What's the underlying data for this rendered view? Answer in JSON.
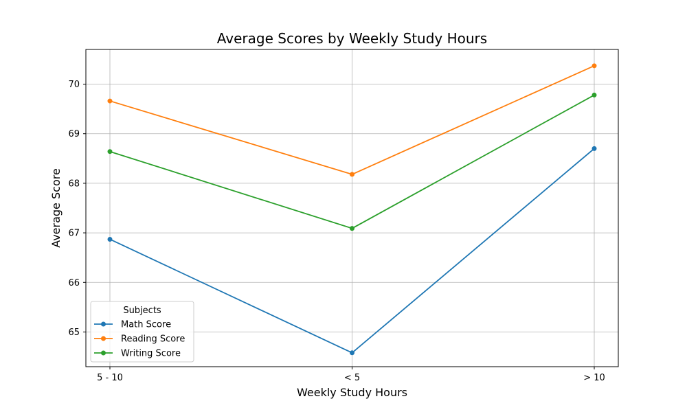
{
  "chart_data": {
    "type": "line",
    "title": "Average Scores by Weekly Study Hours",
    "xlabel": "Weekly Study Hours",
    "ylabel": "Average Score",
    "categories": [
      "5 - 10",
      "< 5",
      "> 10"
    ],
    "ylim": [
      64.3,
      70.7
    ],
    "yticks": [
      65,
      66,
      67,
      68,
      69,
      70
    ],
    "grid": true,
    "legend": {
      "title": "Subjects",
      "placement": "lower-left"
    },
    "series": [
      {
        "name": "Math Score",
        "color": "#1f77b4",
        "values": [
          66.87,
          64.58,
          68.7
        ]
      },
      {
        "name": "Reading Score",
        "color": "#ff7f0e",
        "values": [
          69.66,
          68.18,
          70.37
        ]
      },
      {
        "name": "Writing Score",
        "color": "#2ca02c",
        "values": [
          68.64,
          67.09,
          69.78
        ]
      }
    ]
  }
}
